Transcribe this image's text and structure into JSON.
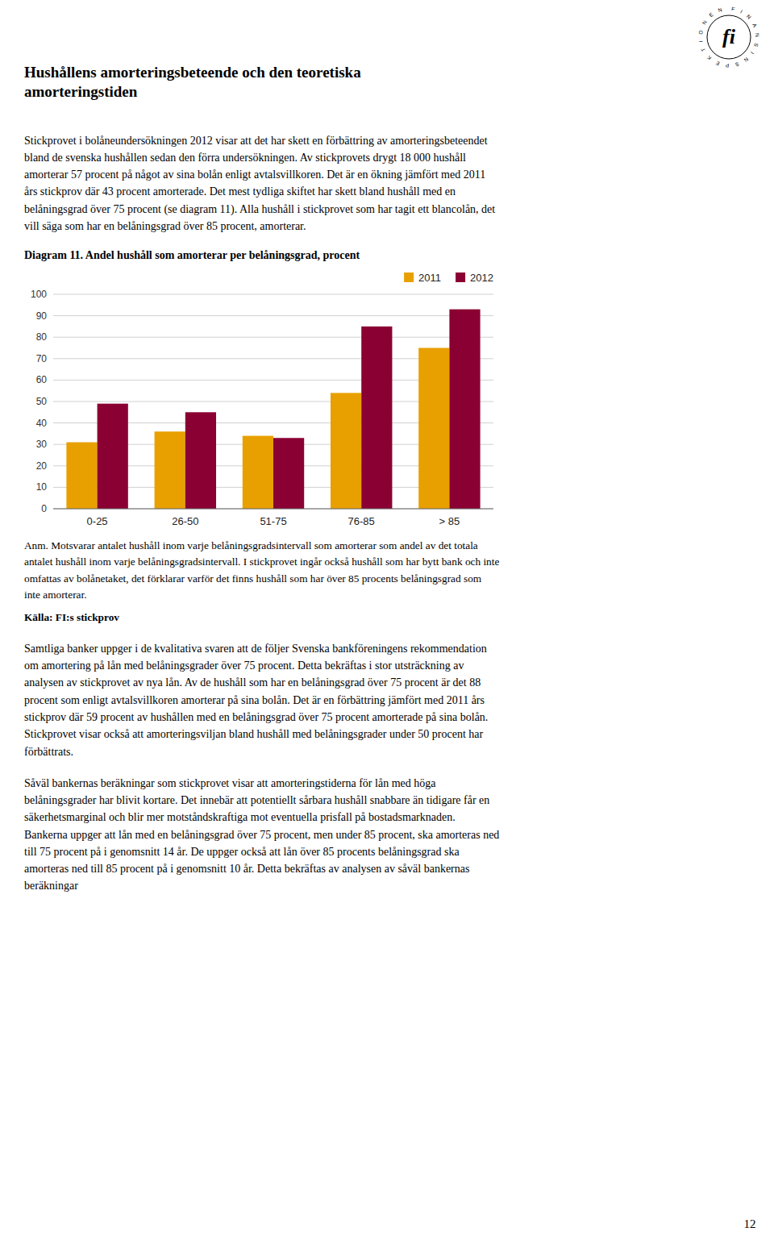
{
  "chart_data": {
    "type": "bar",
    "title": "Diagram 11. Andel hushåll som amorterar per belåningsgrad, procent",
    "categories": [
      "0-25",
      "26-50",
      "51-75",
      "76-85",
      "> 85"
    ],
    "series": [
      {
        "name": "2011",
        "color": "#E8A000",
        "values": [
          31,
          36,
          34,
          54,
          75
        ]
      },
      {
        "name": "2012",
        "color": "#8B0033",
        "values": [
          49,
          45,
          33,
          85,
          93
        ]
      }
    ],
    "ylim": [
      0,
      100
    ],
    "yticks": [
      0,
      10,
      20,
      30,
      40,
      50,
      60,
      70,
      80,
      90,
      100
    ],
    "grid": true,
    "legend": "top-right"
  },
  "page": {
    "heading": "Hushållens amorteringsbeteende och den teoretiska\namorteringstiden",
    "paragraph_1": "Stickprovet i bolåneundersökningen 2012 visar att det har skett en förbättring av amorteringsbeteendet bland de svenska hushållen sedan den förra undersökningen. Av stickprovets drygt 18 000 hushåll amorterar 57 procent på något av sina bolån enligt avtalsvillkoren. Det är en ökning jämfört med 2011 års stickprov där 43 procent amorterade. Det mest tydliga skiftet har skett bland hushåll med en belåningsgrad över 75 procent (se diagram 11). Alla hushåll i stickprovet som har tagit ett blancolån, det vill säga som har en belåningsgrad över 85 procent, amorterar.",
    "note": "Anm. Motsvarar antalet hushåll inom varje belåningsgradsintervall som amorterar som andel av det totala antalet hushåll inom varje belåningsgradsintervall. I stickprovet ingår också hushåll som har bytt bank och inte omfattas av bolånetaket, det förklarar varför det finns hushåll som har över 85 procents belåningsgrad som inte amorterar.",
    "source": "Källa: FI:s stickprov",
    "paragraph_2": "Samtliga banker uppger i de kvalitativa svaren att de följer Svenska bankföreningens rekommendation om amortering på lån med belåningsgrader över 75 procent. Detta bekräftas i stor utsträckning av analysen av stickprovet av nya lån. Av de hushåll som har en belåningsgrad över 75 procent är det 88 procent som enligt avtalsvillkoren amorterar på sina bolån. Det är en förbättring jämfört med 2011 års stickprov där 59 procent av hushållen med en belåningsgrad över 75 procent amorterade på sina bolån. Stickprovet visar också att amorteringsviljan bland hushåll med belåningsgrader under 50 procent har förbättrats.",
    "paragraph_3": "Såväl bankernas beräkningar som stickprovet visar att amorteringstiderna för lån med höga belåningsgrader har blivit kortare. Det innebär att potentiellt sårbara hushåll snabbare än tidigare får en säkerhetsmarginal och blir mer motståndskraftiga mot eventuella prisfall på bostadsmarknaden. Bankerna uppger att lån med en belåningsgrad över 75 procent, men under 85 procent, ska amorteras ned till 75 procent på i genomsnitt 14 år. De uppger också att lån över 85 procents belåningsgrad ska amorteras ned till 85 procent på i genomsnitt 10 år. Detta bekräftas av analysen av såväl bankernas beräkningar",
    "page_number": "12",
    "logo_text": "fi",
    "logo_ring_text": "FINANSINSPEKTIONEN"
  }
}
